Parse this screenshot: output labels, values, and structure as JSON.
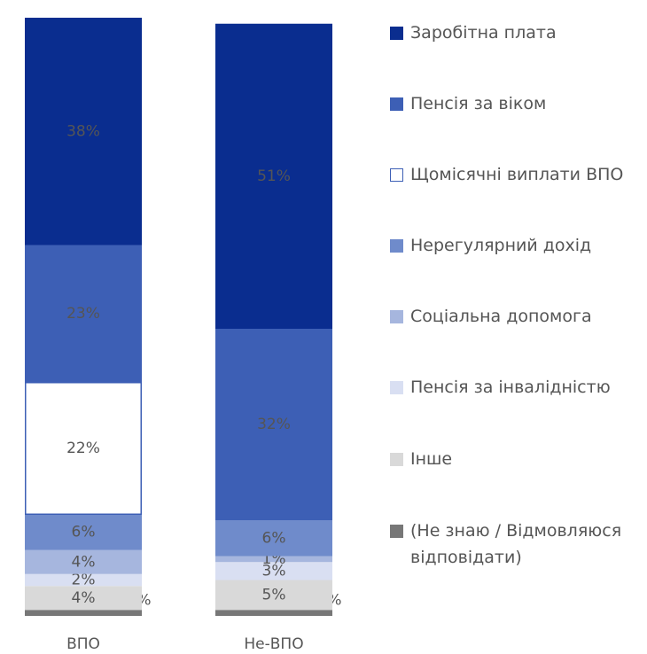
{
  "chart_data": {
    "type": "stacked-bar",
    "categories": [
      "ВПО",
      "Не-ВПО"
    ],
    "ylim": [
      0,
      100
    ],
    "series": [
      {
        "name": "Заробітна плата",
        "color": "#0a2d8f",
        "values": [
          38,
          51
        ],
        "value_labels": [
          "38%",
          "51%"
        ]
      },
      {
        "name": "Пенсія за віком",
        "color": "#3d5fb5",
        "values": [
          23,
          32
        ],
        "value_labels": [
          "23%",
          "32%"
        ]
      },
      {
        "name": "Щомісячні виплати ВПО",
        "color": "#ffffff",
        "values": [
          22,
          0
        ],
        "value_labels": [
          "22%",
          null
        ]
      },
      {
        "name": "Нерегулярний дохід",
        "color": "#6f8bcb",
        "values": [
          6,
          6
        ],
        "value_labels": [
          "6%",
          "6%"
        ]
      },
      {
        "name": "Соціальна допомога",
        "color": "#a6b6de",
        "values": [
          4,
          1
        ],
        "value_labels": [
          "4%",
          "1%"
        ]
      },
      {
        "name": "Пенсія за інвалідністю",
        "color": "#d9dff2",
        "values": [
          2,
          3
        ],
        "value_labels": [
          "2%",
          "3%"
        ]
      },
      {
        "name": "Інше",
        "color": "#d9d9d9",
        "values": [
          4,
          5
        ],
        "value_labels": [
          "4%",
          "5%"
        ]
      },
      {
        "name": "(Не знаю / Відмовляюся відповідати)",
        "color": "#777777",
        "values": [
          1,
          1
        ],
        "value_labels": [
          "1%",
          "1%"
        ]
      }
    ]
  }
}
